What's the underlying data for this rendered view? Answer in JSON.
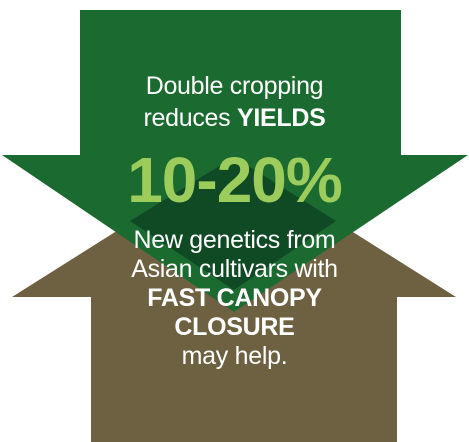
{
  "colors": {
    "down_arrow": "#1b6a30",
    "up_arrow": "#6e6142",
    "overlap": "#0f4a24",
    "highlight_number": "#9ccc5c",
    "text": "#ffffff"
  },
  "down_arrow": {
    "line1": "Double cropping",
    "line2_prefix": "reduces ",
    "line2_strong": "YIELDS",
    "figure": "10-20%"
  },
  "up_arrow": {
    "line1": "New genetics from",
    "line2": "Asian cultivars with",
    "strong1": "FAST CANOPY",
    "strong2": "CLOSURE",
    "line5": "may help."
  }
}
